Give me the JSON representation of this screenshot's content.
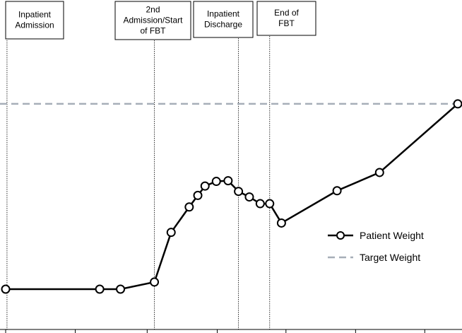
{
  "chart_data": {
    "type": "line",
    "title": "",
    "xlabel": "",
    "ylabel": "",
    "xlim": [
      0,
      100
    ],
    "ylim": [
      0,
      100
    ],
    "grid": false,
    "legend_placement": "right",
    "series": [
      {
        "name": "Patient Weight",
        "style": "solid-with-circle-markers",
        "color": "#000000",
        "x": [
          0,
          20.8,
          25.4,
          32.9,
          36.6,
          40.6,
          42.5,
          44.1,
          46.6,
          49.2,
          51.5,
          53.9,
          56.3,
          58.4,
          61,
          73.3,
          82.7,
          100
        ],
        "y": [
          0,
          0,
          0,
          3.2,
          25.5,
          36.9,
          42.1,
          46.3,
          48.4,
          48.7,
          43.9,
          41.4,
          38.4,
          38.4,
          29.7,
          44.2,
          52.4,
          83.2
        ]
      },
      {
        "name": "Target Weight",
        "style": "dashed",
        "color": "#a6aeb8",
        "x": [
          0,
          100
        ],
        "y": [
          83.2,
          83.2
        ]
      }
    ],
    "x_ticks": [
      0,
      15.4,
      31.3,
      46.8,
      62,
      77.4,
      92.7
    ],
    "events": [
      {
        "x": 0.3,
        "label_lines": [
          "Inpatient",
          "Admission"
        ]
      },
      {
        "x": 32.9,
        "label_lines": [
          "2nd",
          "Admission/Start",
          "of FBT"
        ]
      },
      {
        "x": 51.5,
        "label_lines": [
          "Inpatient",
          "Discharge"
        ]
      },
      {
        "x": 58.4,
        "label_lines": [
          "End of",
          "FBT"
        ]
      }
    ],
    "legend": [
      {
        "label": "Patient Weight",
        "style": "line-marker"
      },
      {
        "label": "Target Weight",
        "style": "dashed"
      }
    ]
  }
}
